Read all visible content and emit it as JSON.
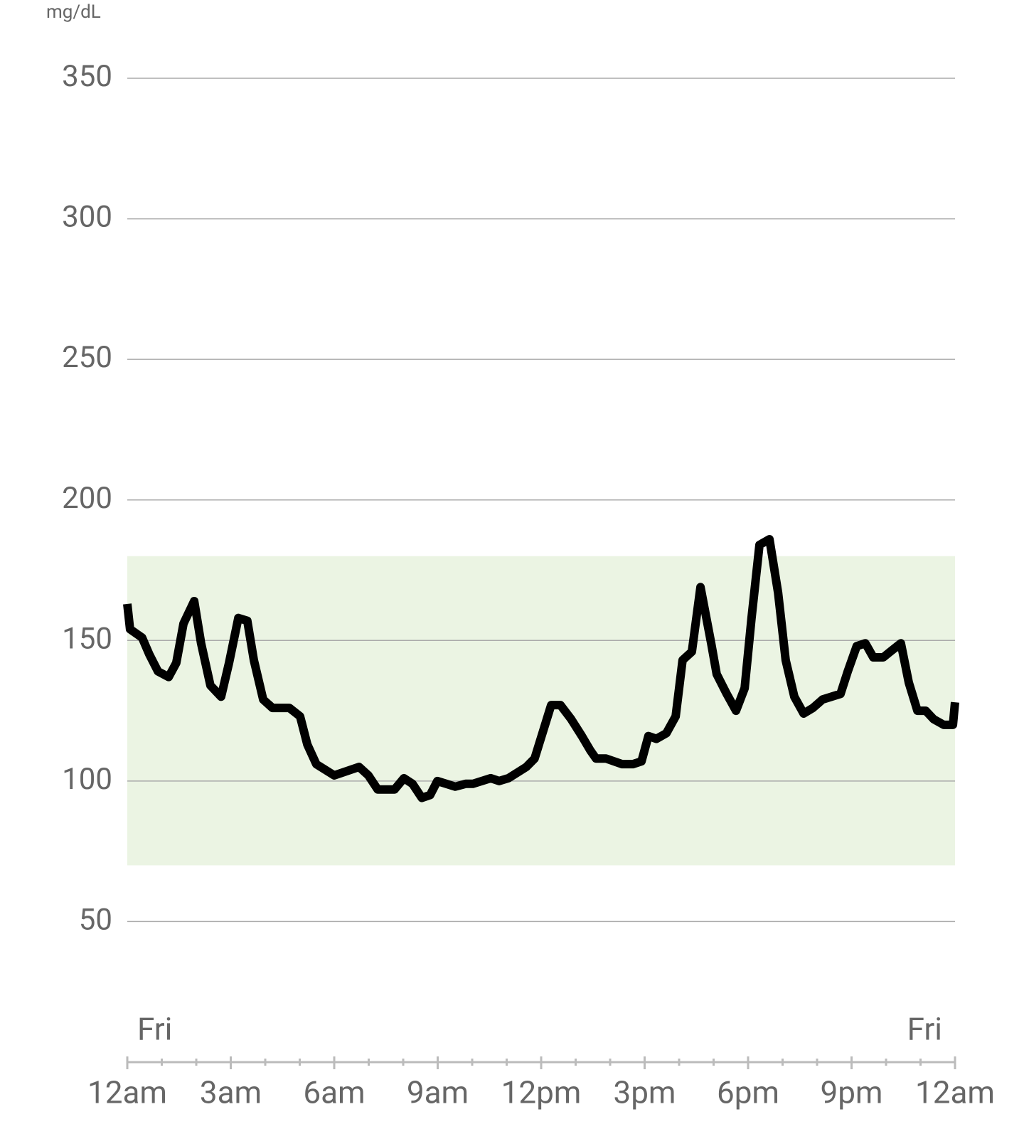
{
  "chart_data": {
    "type": "line",
    "y_unit": "mg/dL",
    "x": [
      0,
      0.08,
      0.43,
      0.64,
      0.89,
      1.2,
      1.42,
      1.63,
      1.94,
      2.14,
      2.41,
      2.72,
      2.95,
      3.22,
      3.48,
      3.67,
      3.94,
      4.21,
      4.7,
      5.01,
      5.22,
      5.48,
      6,
      6.72,
      6.99,
      7.26,
      7.75,
      8.02,
      8.27,
      8.54,
      8.78,
      8.99,
      9.51,
      9.81,
      10.02,
      10.54,
      10.78,
      11.05,
      11.57,
      11.81,
      12.29,
      12.56,
      12.87,
      13.18,
      13.42,
      13.59,
      13.88,
      14.35,
      14.66,
      14.91,
      15.11,
      15.34,
      15.63,
      15.9,
      16.1,
      16.37,
      16.62,
      16.93,
      17.09,
      17.38,
      17.65,
      17.9,
      18.1,
      18.33,
      18.62,
      18.87,
      19.09,
      19.34,
      19.61,
      19.88,
      20.16,
      20.68,
      20.89,
      21.15,
      21.4,
      21.63,
      21.92,
      22.12,
      22.43,
      22.66,
      22.91,
      23.15,
      23.38,
      23.67,
      23.94,
      24
    ],
    "values": [
      163,
      154,
      151,
      145,
      139,
      137,
      142,
      156,
      164,
      149,
      134,
      130,
      142,
      158,
      157,
      143,
      129,
      126,
      126,
      123,
      113,
      106,
      102,
      105,
      102,
      97,
      97,
      101,
      99,
      94,
      95,
      100,
      98,
      99,
      99,
      101,
      100,
      101,
      105,
      108,
      127,
      127,
      122,
      116,
      111,
      108,
      108,
      106,
      106,
      107,
      116,
      115,
      117,
      123,
      143,
      146,
      169,
      149,
      138,
      131,
      125,
      133,
      158,
      184,
      186,
      167,
      143,
      130,
      124,
      126,
      129,
      131,
      139,
      148,
      149,
      144,
      144,
      146,
      149,
      135,
      125,
      125,
      122,
      120,
      120,
      128
    ],
    "color": "#000000",
    "target_range": [
      70,
      180
    ],
    "target_color": "#ebf4e3",
    "xlim": [
      0,
      24
    ],
    "ylim": [
      0,
      350
    ],
    "yticks": [
      50,
      100,
      150,
      200,
      250,
      300,
      350
    ],
    "xticks": [
      {
        "value": 0,
        "label": "12am"
      },
      {
        "value": 3,
        "label": "3am"
      },
      {
        "value": 6,
        "label": "6am"
      },
      {
        "value": 9,
        "label": "9am"
      },
      {
        "value": 12,
        "label": "12pm"
      },
      {
        "value": 15,
        "label": "3pm"
      },
      {
        "value": 18,
        "label": "6pm"
      },
      {
        "value": 21,
        "label": "9pm"
      },
      {
        "value": 24,
        "label": "12am"
      }
    ],
    "xminorticks": [
      1,
      2,
      4,
      5,
      7,
      8,
      10,
      11,
      13,
      14,
      16,
      17,
      19,
      20,
      22,
      23
    ],
    "day_labels": [
      "Fri",
      "Fri"
    ],
    "day_label_x": [
      0,
      24
    ],
    "grid": true
  }
}
